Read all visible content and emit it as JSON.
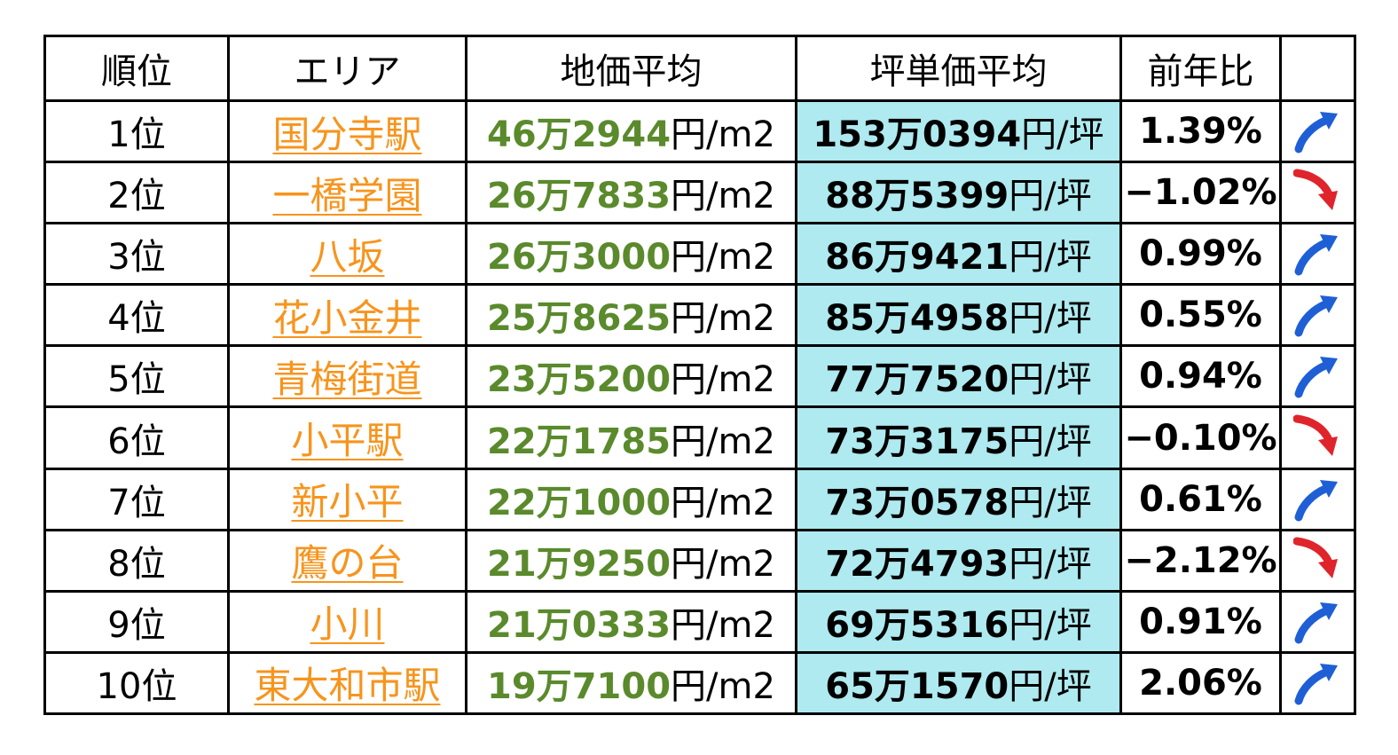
{
  "headers": {
    "rank": "順位",
    "area": "エリア",
    "price": "地価平均",
    "tsubo": "坪単価平均",
    "yoy": "前年比",
    "trend": ""
  },
  "units": {
    "price": "円/m2",
    "tsubo": "円/坪"
  },
  "colors": {
    "up": "#1f5fd6",
    "down": "#e0242c",
    "area": "#f7941d",
    "price": "#5a8a2c",
    "tsubo_bg": "#aeeaf0"
  },
  "rows": [
    {
      "rank": "1位",
      "area": "国分寺駅",
      "price": "46万2944",
      "tsubo": "153万0394",
      "yoy": "1.39%",
      "trend": "up-arrow-icon"
    },
    {
      "rank": "2位",
      "area": "一橋学園",
      "price": "26万7833",
      "tsubo": "88万5399",
      "yoy": "−1.02%",
      "trend": "down-arrow-icon"
    },
    {
      "rank": "3位",
      "area": "八坂",
      "price": "26万3000",
      "tsubo": "86万9421",
      "yoy": "0.99%",
      "trend": "up-arrow-icon"
    },
    {
      "rank": "4位",
      "area": "花小金井",
      "price": "25万8625",
      "tsubo": "85万4958",
      "yoy": "0.55%",
      "trend": "up-arrow-icon"
    },
    {
      "rank": "5位",
      "area": "青梅街道",
      "price": "23万5200",
      "tsubo": "77万7520",
      "yoy": "0.94%",
      "trend": "up-arrow-icon"
    },
    {
      "rank": "6位",
      "area": "小平駅",
      "price": "22万1785",
      "tsubo": "73万3175",
      "yoy": "−0.10%",
      "trend": "down-arrow-icon"
    },
    {
      "rank": "7位",
      "area": "新小平",
      "price": "22万1000",
      "tsubo": "73万0578",
      "yoy": "0.61%",
      "trend": "up-arrow-icon"
    },
    {
      "rank": "8位",
      "area": "鷹の台",
      "price": "21万9250",
      "tsubo": "72万4793",
      "yoy": "−2.12%",
      "trend": "down-arrow-icon"
    },
    {
      "rank": "9位",
      "area": "小川",
      "price": "21万0333",
      "tsubo": "69万5316",
      "yoy": "0.91%",
      "trend": "up-arrow-icon"
    },
    {
      "rank": "10位",
      "area": "東大和市駅",
      "price": "19万7100",
      "tsubo": "65万1570",
      "yoy": "2.06%",
      "trend": "up-arrow-icon"
    }
  ]
}
